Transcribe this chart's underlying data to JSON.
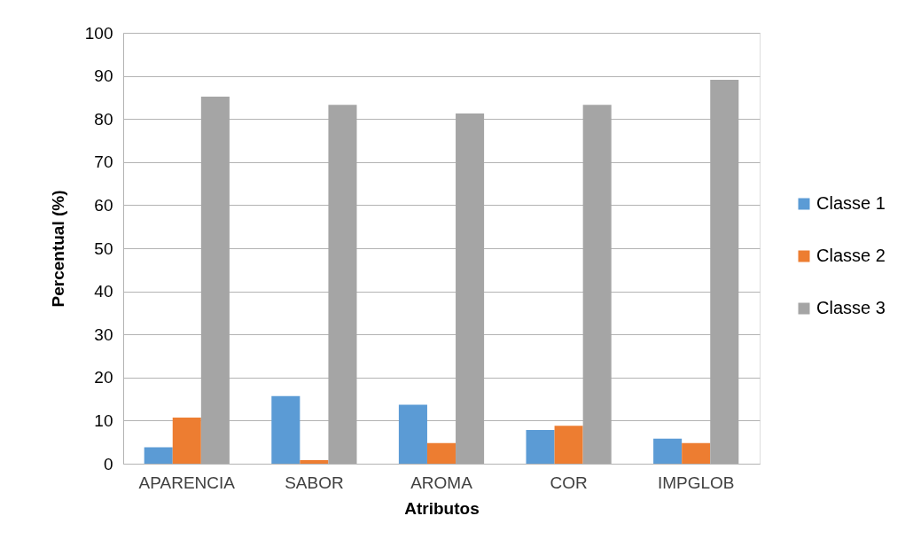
{
  "chart_data": {
    "type": "bar",
    "xlabel": "Atributos",
    "ylabel": "Percentual (%)",
    "categories": [
      "APARENCIA",
      "SABOR",
      "AROMA",
      "COR",
      "IMPGLOB"
    ],
    "series": [
      {
        "name": "Classe 1",
        "color": "#5b9bd5",
        "values": [
          3.8,
          15.7,
          13.7,
          7.8,
          5.8
        ]
      },
      {
        "name": "Classe 2",
        "color": "#ed7d31",
        "values": [
          10.7,
          0.8,
          4.8,
          8.8,
          4.8
        ]
      },
      {
        "name": "Classe 3",
        "color": "#a5a5a5",
        "values": [
          85.2,
          83.3,
          81.3,
          83.3,
          89.1
        ]
      }
    ],
    "ylim": [
      0,
      100
    ],
    "yticks": [
      0,
      10,
      20,
      30,
      40,
      50,
      60,
      70,
      80,
      90,
      100
    ],
    "grid": "y",
    "legend": "right"
  }
}
